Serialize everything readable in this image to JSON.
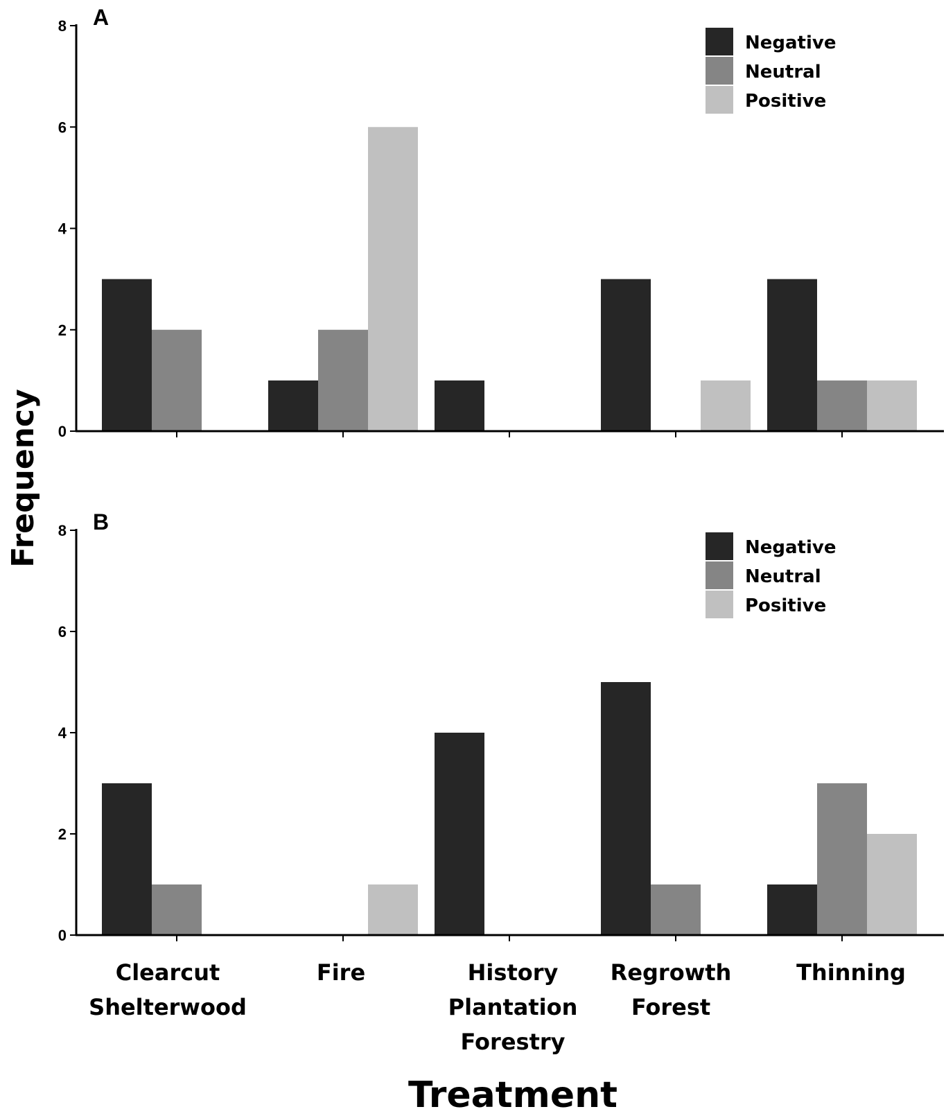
{
  "chart_data": [
    {
      "type": "bar",
      "panel_label": "A",
      "categories": [
        [
          "Clearcut",
          "Shelterwood"
        ],
        [
          "Fire"
        ],
        [
          "History",
          "Plantation",
          "Forestry"
        ],
        [
          "Regrowth",
          "Forest"
        ],
        [
          "Thinning"
        ]
      ],
      "series": [
        {
          "name": "Negative",
          "color": "#262626",
          "values": [
            3,
            1,
            1,
            3,
            3
          ]
        },
        {
          "name": "Neutral",
          "color": "#858585",
          "values": [
            2,
            2,
            0,
            0,
            1
          ]
        },
        {
          "name": "Positive",
          "color": "#c0c0c0",
          "values": [
            0,
            6,
            0,
            1,
            1
          ]
        }
      ],
      "ylim": [
        0,
        8
      ],
      "yticks": [
        0,
        2,
        4,
        6,
        8
      ],
      "legend_position": "top-right",
      "grid": false
    },
    {
      "type": "bar",
      "panel_label": "B",
      "categories": [
        [
          "Clearcut",
          "Shelterwood"
        ],
        [
          "Fire"
        ],
        [
          "History",
          "Plantation",
          "Forestry"
        ],
        [
          "Regrowth",
          "Forest"
        ],
        [
          "Thinning"
        ]
      ],
      "series": [
        {
          "name": "Negative",
          "color": "#262626",
          "values": [
            3,
            0,
            4,
            5,
            1
          ]
        },
        {
          "name": "Neutral",
          "color": "#858585",
          "values": [
            1,
            0,
            0,
            1,
            3
          ]
        },
        {
          "name": "Positive",
          "color": "#c0c0c0",
          "values": [
            0,
            1,
            0,
            0,
            2
          ]
        }
      ],
      "ylim": [
        0,
        8
      ],
      "yticks": [
        0,
        2,
        4,
        6,
        8
      ],
      "legend_position": "top-right",
      "grid": false
    }
  ],
  "ylabel": "Frequency",
  "xlabel": "Treatment"
}
